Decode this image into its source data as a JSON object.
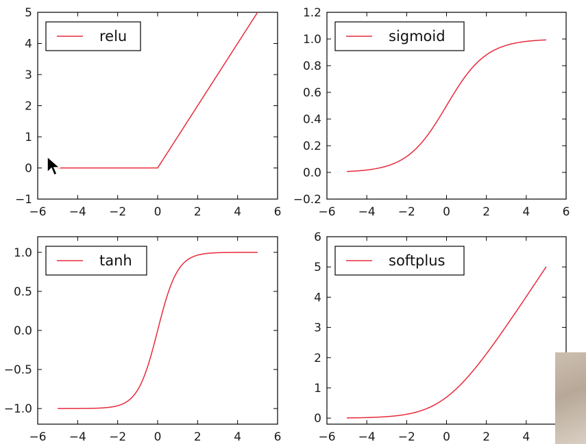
{
  "colors": {
    "line": "#e8283a",
    "frame": "#000000",
    "background": "#ffffff"
  },
  "chart_data": [
    {
      "type": "line",
      "title": "",
      "xlabel": "",
      "ylabel": "",
      "xlim": [
        -6,
        6
      ],
      "ylim": [
        -1,
        5
      ],
      "xticks": [
        "−6",
        "−4",
        "−2",
        "0",
        "2",
        "4",
        "6"
      ],
      "yticks": [
        "−1",
        "0",
        "1",
        "2",
        "3",
        "4",
        "5"
      ],
      "grid": false,
      "legend_position": "upper-left",
      "series": [
        {
          "name": "relu",
          "function": "relu",
          "x": [
            -5,
            -4,
            -3,
            -2,
            -1,
            0,
            1,
            2,
            3,
            4,
            5
          ],
          "y": [
            0,
            0,
            0,
            0,
            0,
            0,
            1,
            2,
            3,
            4,
            5
          ]
        }
      ]
    },
    {
      "type": "line",
      "title": "",
      "xlabel": "",
      "ylabel": "",
      "xlim": [
        -6,
        6
      ],
      "ylim": [
        -0.2,
        1.2
      ],
      "xticks": [
        "−6",
        "−4",
        "−2",
        "0",
        "2",
        "4",
        "6"
      ],
      "yticks": [
        "−0.2",
        "0.0",
        "0.2",
        "0.4",
        "0.6",
        "0.8",
        "1.0",
        "1.2"
      ],
      "grid": false,
      "legend_position": "upper-left",
      "series": [
        {
          "name": "sigmoid",
          "function": "sigmoid",
          "x": [
            -5,
            -4,
            -3,
            -2,
            -1,
            0,
            1,
            2,
            3,
            4,
            5
          ],
          "y": [
            0.007,
            0.018,
            0.047,
            0.119,
            0.269,
            0.5,
            0.731,
            0.881,
            0.953,
            0.982,
            0.993
          ]
        }
      ]
    },
    {
      "type": "line",
      "title": "",
      "xlabel": "",
      "ylabel": "",
      "xlim": [
        -6,
        6
      ],
      "ylim": [
        -1.2,
        1.2
      ],
      "xticks": [
        "−6",
        "−4",
        "−2",
        "0",
        "2",
        "4",
        "6"
      ],
      "yticks": [
        "−1.0",
        "−0.5",
        "0.0",
        "0.5",
        "1.0"
      ],
      "grid": false,
      "legend_position": "upper-left",
      "series": [
        {
          "name": "tanh",
          "function": "tanh",
          "x": [
            -5,
            -4,
            -3,
            -2,
            -1,
            0,
            1,
            2,
            3,
            4,
            5
          ],
          "y": [
            -1.0,
            -0.999,
            -0.995,
            -0.964,
            -0.762,
            0,
            0.762,
            0.964,
            0.995,
            0.999,
            1.0
          ]
        }
      ]
    },
    {
      "type": "line",
      "title": "",
      "xlabel": "",
      "ylabel": "",
      "xlim": [
        -6,
        6
      ],
      "ylim": [
        -0.2,
        6
      ],
      "xticks": [
        "−6",
        "−4",
        "−2",
        "0",
        "2",
        "4",
        "6"
      ],
      "yticks": [
        "0",
        "1",
        "2",
        "3",
        "4",
        "5",
        "6"
      ],
      "grid": false,
      "legend_position": "upper-left",
      "series": [
        {
          "name": "softplus",
          "function": "softplus",
          "x": [
            -5,
            -4,
            -3,
            -2,
            -1,
            0,
            1,
            2,
            3,
            4,
            5
          ],
          "y": [
            0.007,
            0.018,
            0.049,
            0.127,
            0.313,
            0.693,
            1.313,
            2.127,
            3.049,
            4.018,
            5.007
          ]
        }
      ]
    }
  ]
}
